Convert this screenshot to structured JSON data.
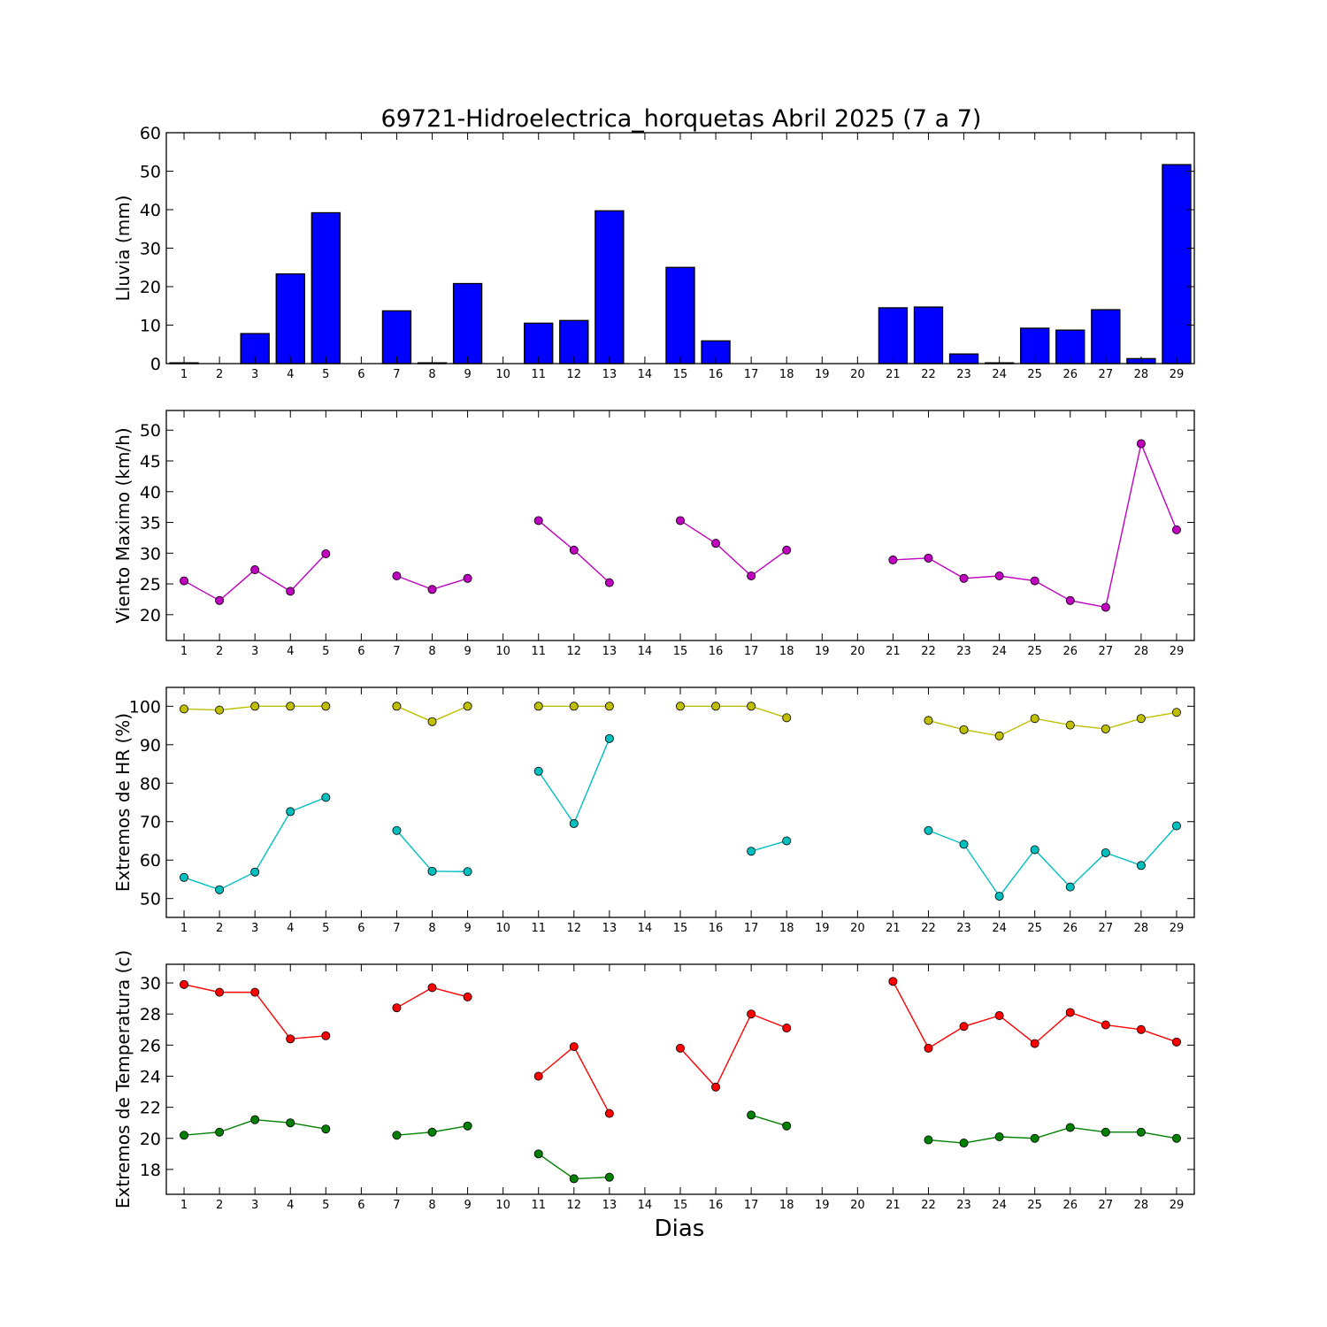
{
  "title": "69721-Hidroelectrica_horquetas Abril 2025  (7 a 7)",
  "xlabel": "Dias",
  "chart_data": [
    {
      "type": "bar",
      "ylabel": "Lluvia (mm)",
      "ylim": [
        0,
        60
      ],
      "yticks": [
        0,
        10,
        20,
        30,
        40,
        50,
        60
      ],
      "x": [
        1,
        2,
        3,
        4,
        5,
        6,
        7,
        8,
        9,
        10,
        11,
        12,
        13,
        14,
        15,
        16,
        17,
        18,
        19,
        20,
        21,
        22,
        23,
        24,
        25,
        26,
        27,
        28,
        29
      ],
      "series": [
        {
          "values": [
            0.2,
            0,
            7.8,
            23.3,
            39.2,
            0,
            13.7,
            0.2,
            20.8,
            0,
            10.5,
            11.2,
            39.7,
            0,
            25.0,
            5.9,
            0,
            0,
            0,
            0,
            14.5,
            14.7,
            2.5,
            0.2,
            9.2,
            8.7,
            14.0,
            1.3,
            51.7
          ],
          "color": "#0000ff"
        }
      ]
    },
    {
      "type": "line",
      "ylabel": "Viento Maximo (km/h)",
      "ylim": [
        15.8,
        53.2
      ],
      "yticks": [
        20,
        25,
        30,
        35,
        40,
        45,
        50
      ],
      "x": [
        1,
        2,
        3,
        4,
        5,
        6,
        7,
        8,
        9,
        10,
        11,
        12,
        13,
        14,
        15,
        16,
        17,
        18,
        19,
        20,
        21,
        22,
        23,
        24,
        25,
        26,
        27,
        28,
        29
      ],
      "series": [
        {
          "values": [
            25.5,
            22.3,
            27.3,
            23.8,
            29.9,
            null,
            26.3,
            24.1,
            25.9,
            null,
            35.3,
            30.5,
            25.2,
            null,
            35.3,
            31.6,
            26.3,
            30.5,
            null,
            null,
            28.9,
            29.2,
            25.9,
            26.3,
            25.5,
            22.3,
            21.2,
            47.8,
            33.8
          ],
          "color": "#bf00bf"
        }
      ]
    },
    {
      "type": "line",
      "ylabel": "Extremos de HR (%)",
      "ylim": [
        45.1,
        104.9
      ],
      "yticks": [
        50,
        60,
        70,
        80,
        90,
        100
      ],
      "x": [
        1,
        2,
        3,
        4,
        5,
        6,
        7,
        8,
        9,
        10,
        11,
        12,
        13,
        14,
        15,
        16,
        17,
        18,
        19,
        20,
        21,
        22,
        23,
        24,
        25,
        26,
        27,
        28,
        29
      ],
      "series": [
        {
          "values": [
            99.3,
            99.0,
            100,
            100,
            100,
            null,
            100,
            96.0,
            100,
            null,
            100,
            100,
            100,
            null,
            100,
            100,
            100,
            97.0,
            null,
            null,
            null,
            96.3,
            93.9,
            92.3,
            96.8,
            95.1,
            94.1,
            96.8,
            98.4
          ],
          "color": "#bfbf00"
        },
        {
          "values": [
            55.5,
            52.3,
            56.9,
            72.6,
            76.3,
            null,
            67.7,
            57.1,
            57.0,
            null,
            83.1,
            69.5,
            91.6,
            null,
            null,
            null,
            62.3,
            65.0,
            null,
            null,
            null,
            67.7,
            64.1,
            50.6,
            62.7,
            53.0,
            61.9,
            58.6,
            68.9
          ],
          "color": "#00bfbf"
        }
      ]
    },
    {
      "type": "line",
      "ylabel": "Extremos de Temperatura (c)",
      "ylim": [
        16.4,
        31.2
      ],
      "yticks": [
        18,
        20,
        22,
        24,
        26,
        28,
        30
      ],
      "x": [
        1,
        2,
        3,
        4,
        5,
        6,
        7,
        8,
        9,
        10,
        11,
        12,
        13,
        14,
        15,
        16,
        17,
        18,
        19,
        20,
        21,
        22,
        23,
        24,
        25,
        26,
        27,
        28,
        29
      ],
      "series": [
        {
          "values": [
            29.9,
            29.4,
            29.4,
            26.4,
            26.6,
            null,
            28.4,
            29.7,
            29.1,
            null,
            24.0,
            25.9,
            21.6,
            null,
            25.8,
            23.3,
            28.0,
            27.1,
            null,
            null,
            30.1,
            25.8,
            27.2,
            27.9,
            26.1,
            28.1,
            27.3,
            27.0,
            26.2
          ],
          "color": "#ff0000"
        },
        {
          "values": [
            20.2,
            20.4,
            21.2,
            21.0,
            20.6,
            null,
            20.2,
            20.4,
            20.8,
            null,
            19.0,
            17.4,
            17.5,
            null,
            null,
            null,
            21.5,
            20.8,
            null,
            null,
            null,
            19.9,
            19.7,
            20.1,
            20.0,
            20.7,
            20.4,
            20.4,
            20.0
          ],
          "color": "#008000"
        }
      ]
    }
  ]
}
